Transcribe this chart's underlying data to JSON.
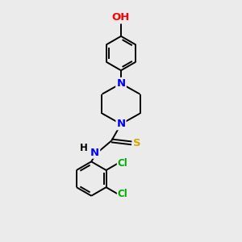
{
  "background_color": "#ebebeb",
  "bond_color": "#000000",
  "atom_colors": {
    "N": "#0000ff",
    "O": "#ff0000",
    "S": "#ccaa00",
    "Cl": "#00aa00",
    "H": "#000000",
    "C": "#000000"
  },
  "font_size": 8.5,
  "line_width": 1.4,
  "figsize": [
    3.0,
    3.0
  ],
  "dpi": 100
}
